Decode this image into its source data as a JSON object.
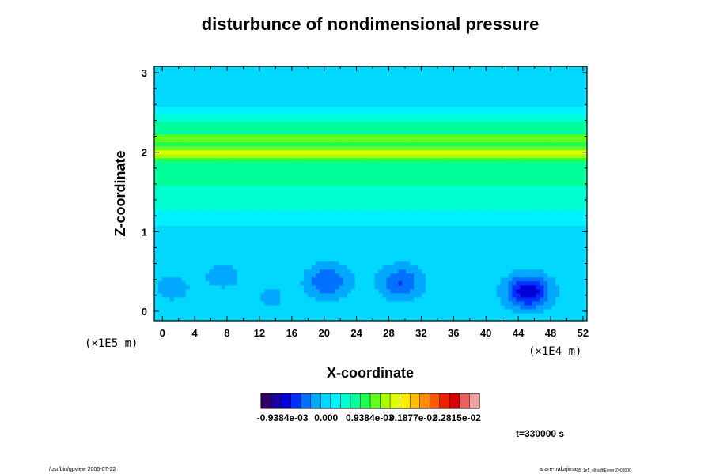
{
  "chart_data": {
    "type": "heatmap",
    "title": "disturbunce of nondimensional pressure",
    "xlabel": "X-coordinate",
    "ylabel": "Z-coordinate",
    "x_scale_label": "(×1E4 m)",
    "y_scale_label": "(×1E5 m)",
    "xlim": [
      -1,
      52.5
    ],
    "ylim": [
      -0.12,
      3.08
    ],
    "x_ticks": [
      "0",
      "4",
      "8",
      "12",
      "16",
      "20",
      "24",
      "28",
      "32",
      "36",
      "40",
      "44",
      "48",
      "52"
    ],
    "y_ticks": [
      "0",
      "1",
      "2",
      "3"
    ],
    "background_value": 0.0,
    "layers": [
      {
        "z": 2.55,
        "width": 0.05,
        "value": 0.00015
      },
      {
        "z": 2.45,
        "width": 0.05,
        "value": 0.00045
      },
      {
        "z": 2.33,
        "width": 0.08,
        "value": 0.0006
      },
      {
        "z": 2.18,
        "width": 0.08,
        "value": 0.0011
      },
      {
        "z": 2.0,
        "width": 0.08,
        "value": 0.00115
      },
      {
        "z": 1.75,
        "width": 0.25,
        "value": 0.0007
      },
      {
        "z": 1.35,
        "width": 0.2,
        "value": 0.0003
      },
      {
        "z": 1.0,
        "width": 0.15,
        "value": 5e-05
      }
    ],
    "blobs": [
      {
        "x": 20.5,
        "z": 0.38,
        "value": -0.00055
      },
      {
        "x": 29.5,
        "z": 0.37,
        "value": -0.00055
      },
      {
        "x": 45.2,
        "z": 0.25,
        "value": -0.00095
      },
      {
        "x": 1.2,
        "z": 0.3,
        "value": -0.0002
      },
      {
        "x": 7.5,
        "z": 0.45,
        "value": -0.0002
      },
      {
        "x": 13.5,
        "z": 0.18,
        "value": -0.00015
      }
    ],
    "colorbar": {
      "ticks": [
        "-0.9384e-03",
        "0.000",
        "0.9384e-03",
        "0.1877e-02",
        "0.2815e-02"
      ],
      "range": [
        -0.0014,
        0.0033
      ],
      "colors": [
        "#330066",
        "#1a00a0",
        "#0000d8",
        "#0030ff",
        "#0070ff",
        "#00a8ff",
        "#00d8ff",
        "#00f0ff",
        "#00ffd0",
        "#00ff9a",
        "#20ff50",
        "#60ff20",
        "#a8ff00",
        "#e0ff00",
        "#ffee00",
        "#ffbe00",
        "#ff8c00",
        "#ff5a00",
        "#ee2000",
        "#d80000",
        "#e86060",
        "#f0a0a0"
      ]
    },
    "time_label": "t=330000 s"
  },
  "footer": {
    "left": "/usr/bin/gpview 2005-07-22",
    "right": "arare-nakajima",
    "right_sub": "05_1e5_ellnc@Exner:Z=03000"
  }
}
